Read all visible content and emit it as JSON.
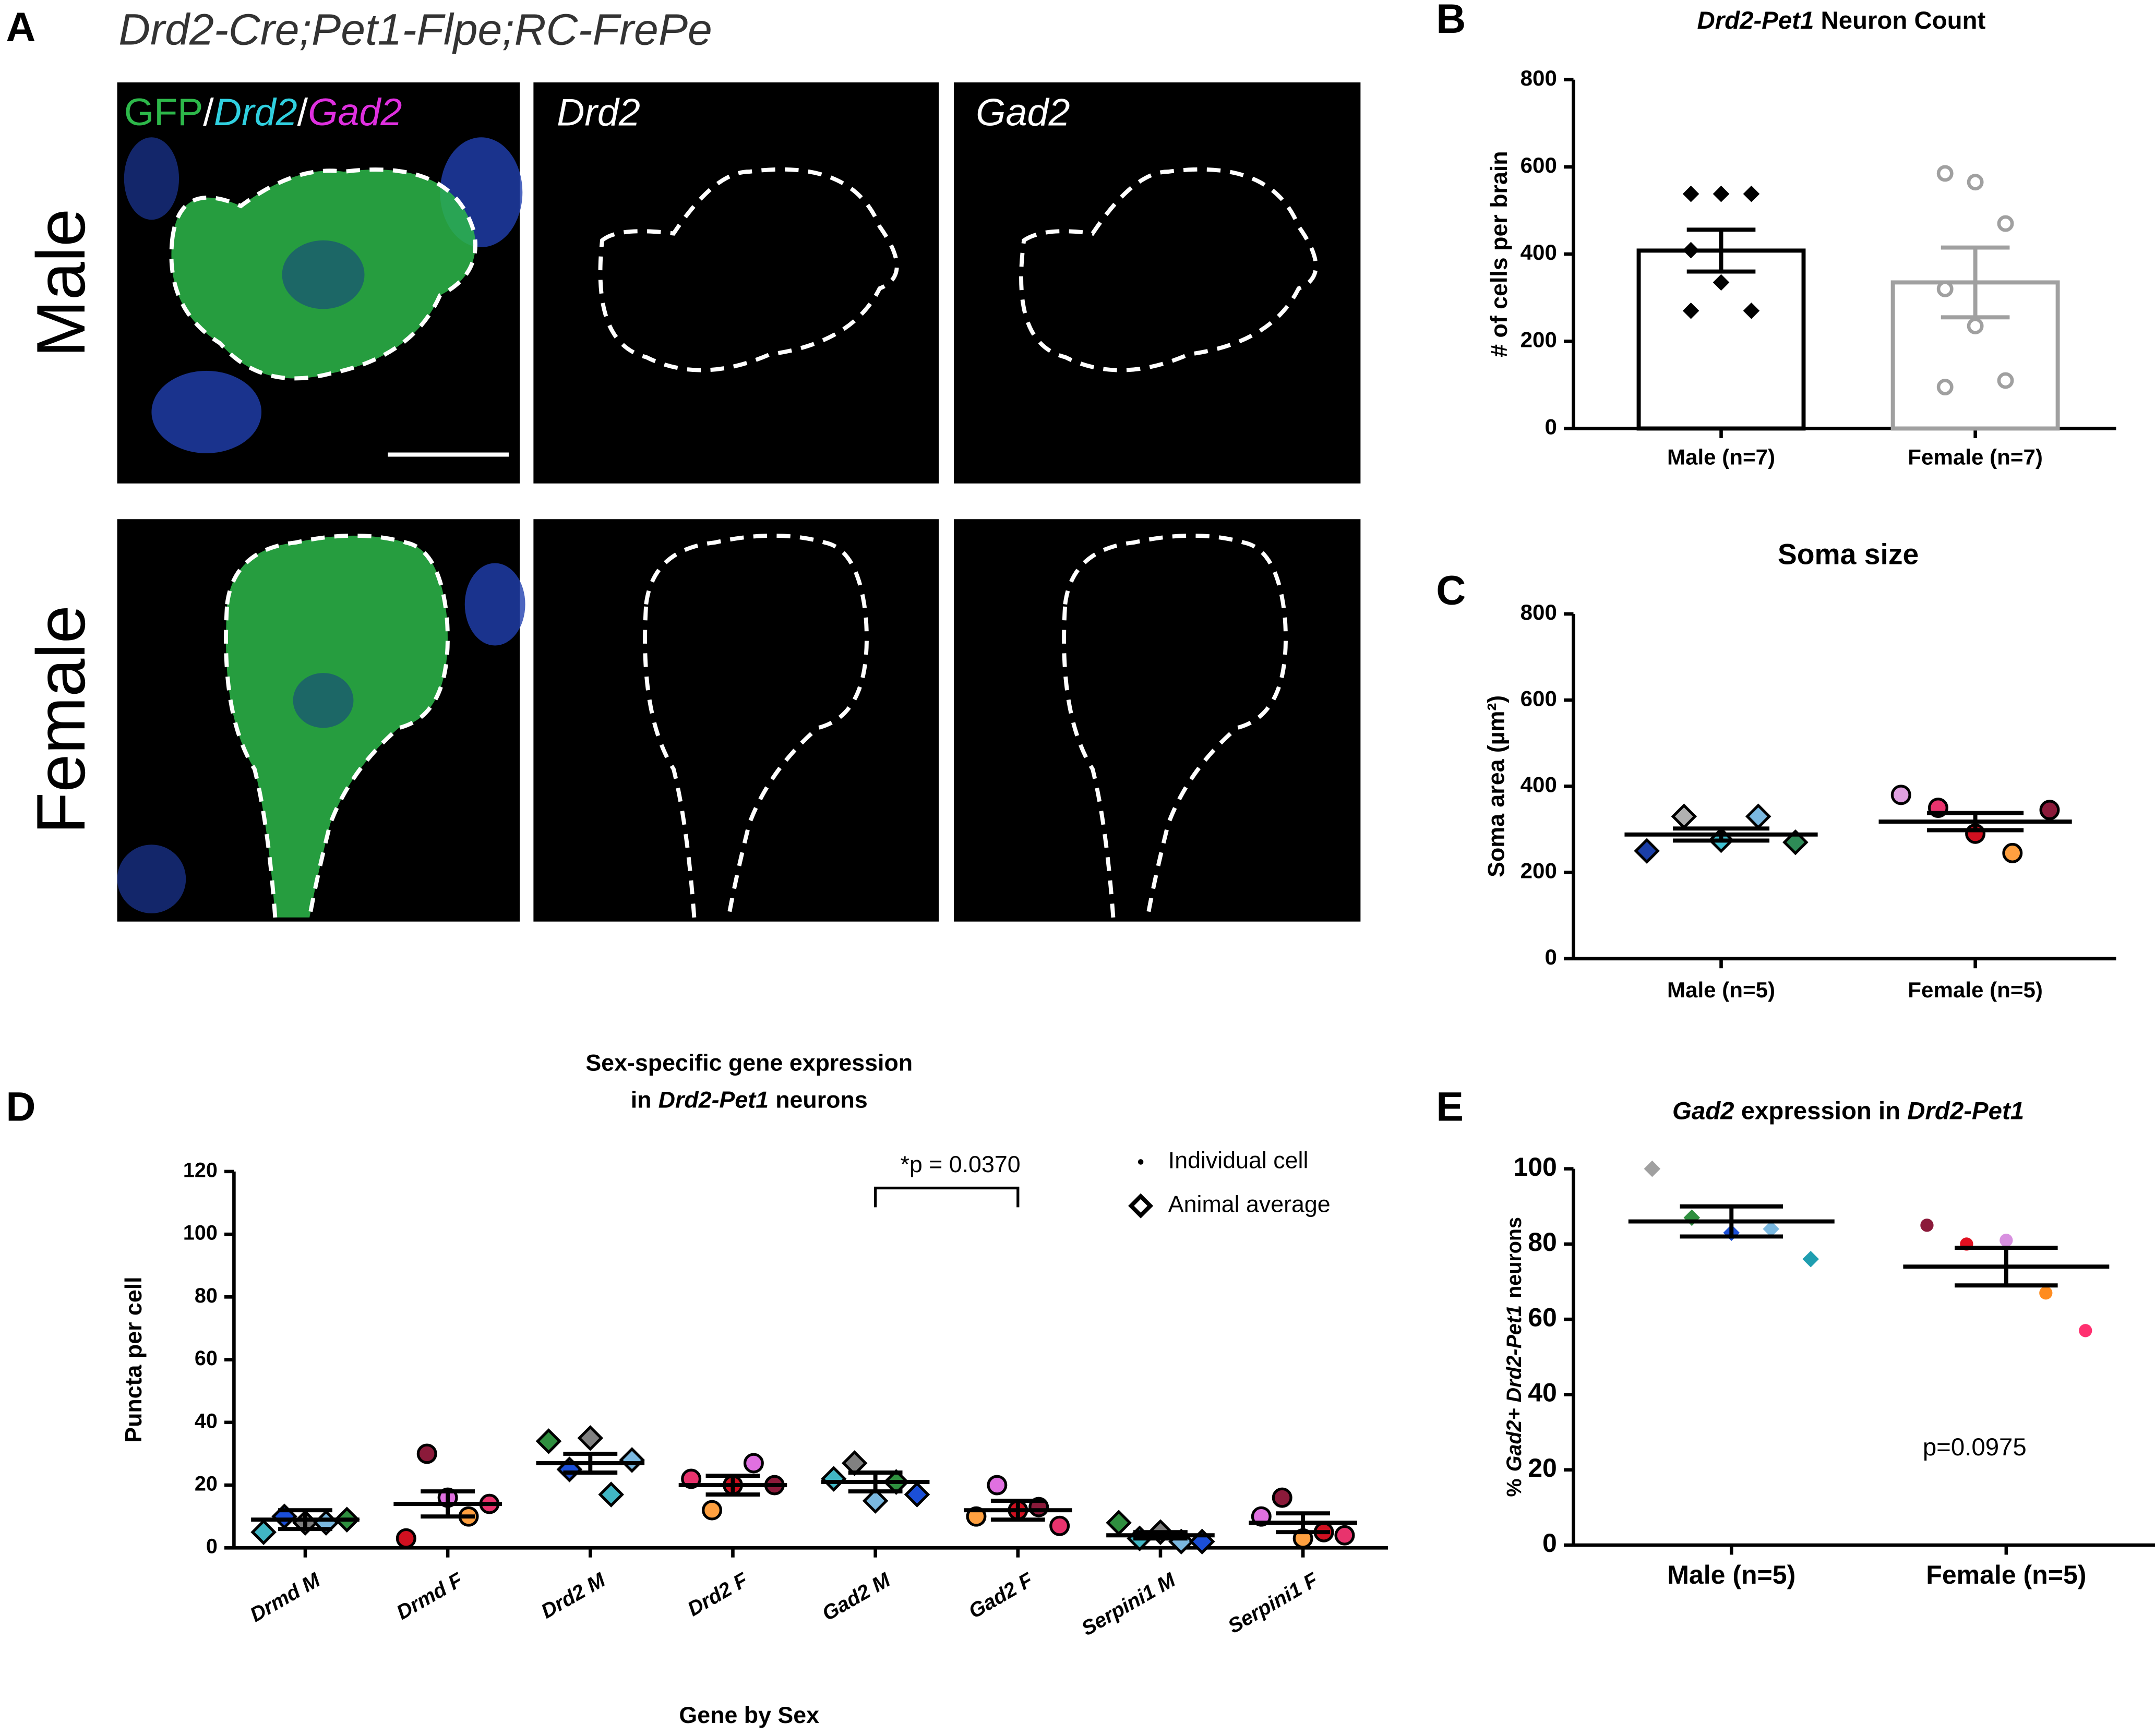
{
  "panel_a": {
    "panel": "A",
    "title": "Drd2-Cre;Pet1-Flpe;RC-FrePe",
    "merge_label": [
      "GFP",
      "/",
      "Drd2",
      "/",
      "Gad2"
    ],
    "columns": [
      "Drd2",
      "Gad2"
    ],
    "rows": [
      "Male",
      "Female"
    ]
  },
  "chart_data": [
    {
      "type": "bar",
      "panel": "B",
      "title_parts": [
        {
          "text": "Drd2-Pet1",
          "italic": true
        },
        {
          "text": "Neuron Count"
        }
      ],
      "ylabel_parts": [
        {
          "text": "# of cells per brain"
        }
      ],
      "categories": [
        "Male (n=7)",
        "Female (n=7)"
      ],
      "means": [
        408,
        335
      ],
      "errors": [
        48,
        80
      ],
      "colors": [
        "#000000",
        "#a0a0a0"
      ],
      "markers": [
        "diamond",
        "circle"
      ],
      "marker_filled": [
        true,
        false
      ],
      "points": [
        [
          538,
          538,
          538,
          409,
          335,
          270,
          270
        ],
        [
          585,
          565,
          470,
          320,
          235,
          110,
          95
        ]
      ],
      "ylim": [
        0,
        800
      ],
      "yticks": [
        0,
        200,
        400,
        600,
        800
      ]
    },
    {
      "type": "dot",
      "panel": "C",
      "title_parts": [
        {
          "text": "Soma size"
        }
      ],
      "ylabel_parts": [
        {
          "text": "Soma area (µm²)"
        }
      ],
      "categories": [
        "Male (n=5)",
        "Female (n=5)"
      ],
      "means": [
        288,
        318
      ],
      "errors": [
        14,
        20
      ],
      "markers": [
        "diamond",
        "circle"
      ],
      "points": [
        [
          250,
          330,
          275,
          330,
          270
        ],
        [
          380,
          350,
          290,
          245,
          345
        ]
      ],
      "point_colors": [
        [
          "#1b3fa8",
          "#b0b0b0",
          "#40c0d0",
          "#7ab8e0",
          "#2e8b57"
        ],
        [
          "#e0a0e0",
          "#e8336d",
          "#d01020",
          "#ffa040",
          "#8b1a3a"
        ]
      ],
      "ylim": [
        0,
        800
      ],
      "yticks": [
        0,
        200,
        400,
        600,
        800
      ]
    },
    {
      "type": "dot",
      "panel": "D",
      "title_parts": [
        {
          "text": "Sex-specific gene expression"
        },
        {
          "text": "in"
        },
        {
          "text": "Drd2-Pet1",
          "italic": true
        },
        {
          "text": "neurons"
        }
      ],
      "ylabel_parts": [
        {
          "text": "Puncta per cell"
        }
      ],
      "xlabel": "Gene by Sex",
      "categories": [
        "Drmd M",
        "Drmd F",
        "Drd2 M",
        "Drd2 F",
        "Gad2 M",
        "Gad2 F",
        "Serpini1 M",
        "Serpini1 F"
      ],
      "means": [
        9,
        14,
        27,
        20,
        21,
        12,
        4,
        8
      ],
      "errors": [
        3,
        4,
        3,
        3,
        3,
        3,
        1,
        3
      ],
      "markers": [
        "diamond",
        "circle",
        "diamond",
        "circle",
        "diamond",
        "circle",
        "diamond",
        "circle"
      ],
      "points": [
        [
          5,
          10,
          8,
          8,
          9
        ],
        [
          3,
          30,
          16,
          10,
          14
        ],
        [
          34,
          25,
          35,
          17,
          28
        ],
        [
          22,
          12,
          20,
          27,
          20
        ],
        [
          22,
          27,
          15,
          21,
          17
        ],
        [
          10,
          20,
          12,
          13,
          7
        ],
        [
          8,
          3,
          5,
          2,
          2
        ],
        [
          10,
          16,
          3,
          5,
          4
        ]
      ],
      "point_colors": [
        [
          "#41b6c4",
          "#1b4fd8",
          "#808080",
          "#7ab8e0",
          "#2f8f3f"
        ],
        [
          "#d01020",
          "#8b1a3a",
          "#e070e0",
          "#ffa040",
          "#e8336d"
        ],
        [
          "#2f8f3f",
          "#1b4fd8",
          "#808080",
          "#41b6c4",
          "#7ab8e0"
        ],
        [
          "#e8336d",
          "#ffa040",
          "#d01020",
          "#e070e0",
          "#8b1a3a"
        ],
        [
          "#41b6c4",
          "#808080",
          "#7ab8e0",
          "#2f8f3f",
          "#1b4fd8"
        ],
        [
          "#ffa040",
          "#e070e0",
          "#d01020",
          "#8b1a3a",
          "#e8336d"
        ],
        [
          "#2f8f3f",
          "#41b6c4",
          "#808080",
          "#7ab8e0",
          "#1b4fd8"
        ],
        [
          "#e070e0",
          "#8b1a3a",
          "#ffa040",
          "#d01020",
          "#e8336d"
        ]
      ],
      "annotation": "*p = 0.0370",
      "legend": [
        "Individual cell",
        "Animal average"
      ],
      "ylim": [
        0,
        120
      ],
      "yticks": [
        0,
        20,
        40,
        60,
        80,
        100,
        120
      ]
    },
    {
      "type": "dot",
      "panel": "E",
      "title_parts": [
        {
          "text": "Gad2",
          "italic": true
        },
        {
          "text": "expression in"
        },
        {
          "text": "Drd2-Pet1",
          "italic": true
        }
      ],
      "ylabel_parts": [
        {
          "text": "%"
        },
        {
          "text": "Gad2+ Drd2-Pet1",
          "italic": true
        },
        {
          "text": "neurons"
        }
      ],
      "categories": [
        "Male (n=5)",
        "Female (n=5)"
      ],
      "means": [
        86,
        74
      ],
      "errors": [
        4,
        5
      ],
      "markers": [
        "diamond",
        "circle"
      ],
      "points": [
        [
          100,
          87,
          83,
          84,
          76
        ],
        [
          85,
          80,
          81,
          67,
          57
        ]
      ],
      "point_colors": [
        [
          "#a0a0a0",
          "#2f8f3f",
          "#1b4fd8",
          "#7ab8e0",
          "#1f9eb0"
        ],
        [
          "#8b1a3a",
          "#e01020",
          "#d890e0",
          "#ff8c20",
          "#ff3070"
        ]
      ],
      "annotation": "p=0.0975",
      "ylim": [
        0,
        100
      ],
      "yticks": [
        0,
        20,
        40,
        60,
        80,
        100
      ]
    }
  ]
}
